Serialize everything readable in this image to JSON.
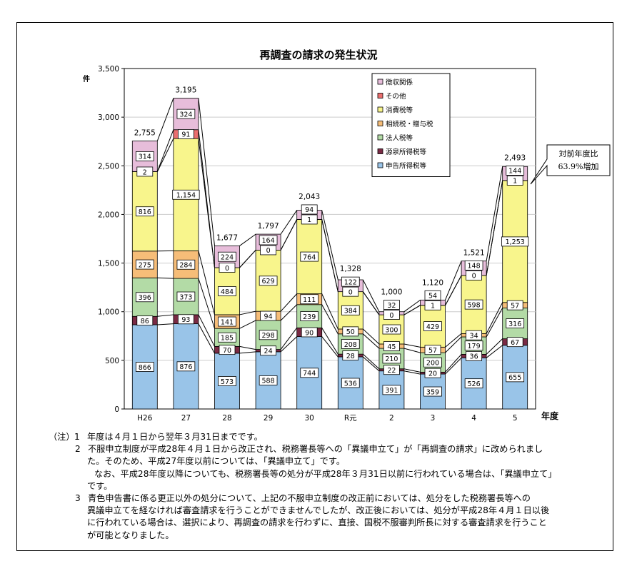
{
  "chart_data": {
    "type": "bar",
    "stacked": true,
    "title": "再調査の請求の発生状況",
    "ylabel": "件",
    "xlabel": "年度",
    "ylim": [
      0,
      3500
    ],
    "yticks": [
      "0",
      "500",
      "1,000",
      "1,500",
      "2,000",
      "2,500",
      "3,000",
      "3,500"
    ],
    "ytick_values": [
      0,
      500,
      1000,
      1500,
      2000,
      2500,
      3000,
      3500
    ],
    "categories": [
      "H26",
      "27",
      "28",
      "29",
      "30",
      "R元",
      "2",
      "3",
      "4",
      "5"
    ],
    "totals": [
      2755,
      3195,
      1677,
      1797,
      2043,
      1328,
      1000,
      1120,
      1521,
      2493
    ],
    "total_labels": [
      "2,755",
      "3,195",
      "1,677",
      "1,797",
      "2,043",
      "1,328",
      "1,000",
      "1,120",
      "1,521",
      "2,493"
    ],
    "series": [
      {
        "name": "申告所得税等",
        "color": "#99c4e8",
        "values": [
          866,
          876,
          573,
          588,
          744,
          536,
          391,
          359,
          526,
          655
        ]
      },
      {
        "name": "源泉所得税等",
        "color": "#7a2a44",
        "values": [
          86,
          93,
          70,
          24,
          90,
          28,
          22,
          20,
          36,
          67
        ]
      },
      {
        "name": "法人税等",
        "color": "#b3dba6",
        "values": [
          396,
          373,
          185,
          298,
          239,
          208,
          210,
          200,
          179,
          316
        ]
      },
      {
        "name": "相続税・贈与税",
        "color": "#f6bd78",
        "values": [
          275,
          284,
          141,
          94,
          111,
          50,
          45,
          57,
          34,
          57
        ]
      },
      {
        "name": "消費税等",
        "color": "#f8f58c",
        "values": [
          816,
          1154,
          484,
          629,
          764,
          384,
          300,
          429,
          598,
          1253
        ]
      },
      {
        "name": "その他",
        "color": "#ea6e6e",
        "values": [
          2,
          91,
          0,
          0,
          1,
          0,
          0,
          1,
          0,
          1
        ]
      },
      {
        "name": "徴収関係",
        "color": "#e7bdda",
        "values": [
          314,
          324,
          224,
          164,
          94,
          122,
          32,
          54,
          148,
          144
        ]
      }
    ],
    "value_labels": [
      [
        "866",
        "876",
        "573",
        "588",
        "744",
        "536",
        "391",
        "359",
        "526",
        "655"
      ],
      [
        "86",
        "93",
        "70",
        "24",
        "90",
        "28",
        "22",
        "20",
        "36",
        "67"
      ],
      [
        "396",
        "373",
        "185",
        "298",
        "239",
        "208",
        "210",
        "200",
        "179",
        "316"
      ],
      [
        "275",
        "284",
        "141",
        "94",
        "111",
        "50",
        "45",
        "57",
        "34",
        "57"
      ],
      [
        "816",
        "1,154",
        "484",
        "629",
        "764",
        "384",
        "300",
        "429",
        "598",
        "1,253"
      ],
      [
        "2",
        "91",
        "0",
        "0",
        "1",
        "0",
        "0",
        "1",
        "0",
        "1"
      ],
      [
        "314",
        "324",
        "224",
        "164",
        "94",
        "122",
        "32",
        "54",
        "148",
        "144"
      ]
    ],
    "legend_order": [
      "徴収関係",
      "その他",
      "消費税等",
      "相続税・贈与税",
      "法人税等",
      "源泉所得税等",
      "申告所得税等"
    ],
    "legend_position": "top-center",
    "callout": {
      "line1": "対前年度比",
      "line2": "63.9%増加"
    }
  },
  "notes": {
    "prefix": "（注）",
    "n1": "1",
    "line1": "年度は４月１日から翌年３月31日までです。",
    "n2": "2",
    "line2a": "不服申立制度が平成28年４月１日から改正され、税務署長等への「異議申立て」が「再調査の請求」に改められまし",
    "line2b": "た。そのため、平成27年度以前については、「異議申立て」です。",
    "line2c": "なお、平成28年度以降についても、税務署長等の処分が平成28年３月31日以前に行われている場合は、「異議申立て」",
    "line2d": "です。",
    "n3": "3",
    "line3a": "青色申告書に係る更正以外の処分について、上記の不服申立制度の改正前においては、処分をした税務署長等への",
    "line3b": "異議申立てを経なければ審査請求を行うことができませんでしたが、改正後においては、処分が平成28年４月１日以後",
    "line3c": "に行われている場合は、選択により、再調査の請求を行わずに、直接、国税不服審判所長に対する審査請求を行うこと",
    "line3d": "が可能となりました。"
  }
}
